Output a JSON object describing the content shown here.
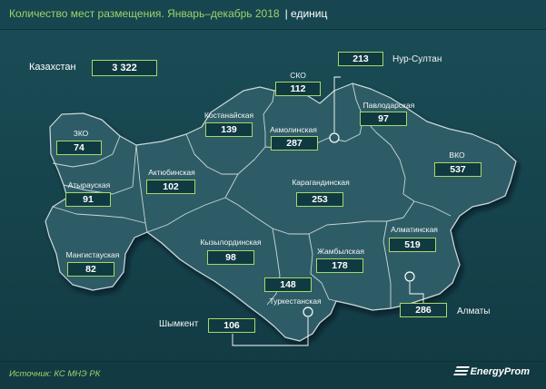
{
  "header": {
    "title": "Количество мест размещения. Январь–декабрь 2018",
    "unit": "единиц"
  },
  "total": {
    "label": "Казахстан",
    "value": "3 322"
  },
  "regions": {
    "zko": {
      "label": "ЗКО",
      "value": "74"
    },
    "atyrau": {
      "label": "Атырауская",
      "value": "91"
    },
    "mangistau": {
      "label": "Мангистауская",
      "value": "82"
    },
    "aktobe": {
      "label": "Актюбинская",
      "value": "102"
    },
    "kostanay": {
      "label": "Костанайская",
      "value": "139"
    },
    "sko": {
      "label": "СКО",
      "value": "112"
    },
    "akmola": {
      "label": "Акмолинская",
      "value": "287"
    },
    "pavlodar": {
      "label": "Павлодарская",
      "value": "97"
    },
    "vko": {
      "label": "ВКО",
      "value": "537"
    },
    "karaganda": {
      "label": "Карагандинская",
      "value": "253"
    },
    "kyzylorda": {
      "label": "Кызылординская",
      "value": "98"
    },
    "zhambyl": {
      "label": "Жамбылская",
      "value": "178"
    },
    "almaty_obl": {
      "label": "Алматинская",
      "value": "519"
    },
    "turkestan": {
      "label": "Туркестанская",
      "value": "148"
    }
  },
  "cities": {
    "nur_sultan": {
      "label": "Нур-Султан",
      "value": "213"
    },
    "shymkent": {
      "label": "Шымкент",
      "value": "106"
    },
    "almaty": {
      "label": "Алматы",
      "value": "286"
    }
  },
  "footer": {
    "source": "Источник: КС МНЭ РК",
    "logo": "EnergyProm"
  },
  "colors": {
    "land": "#2d5c66",
    "border": "#c9d8da",
    "accent": "#9ed36a",
    "box_bg": "#0f3a42",
    "box_border": "#a8d86a"
  }
}
